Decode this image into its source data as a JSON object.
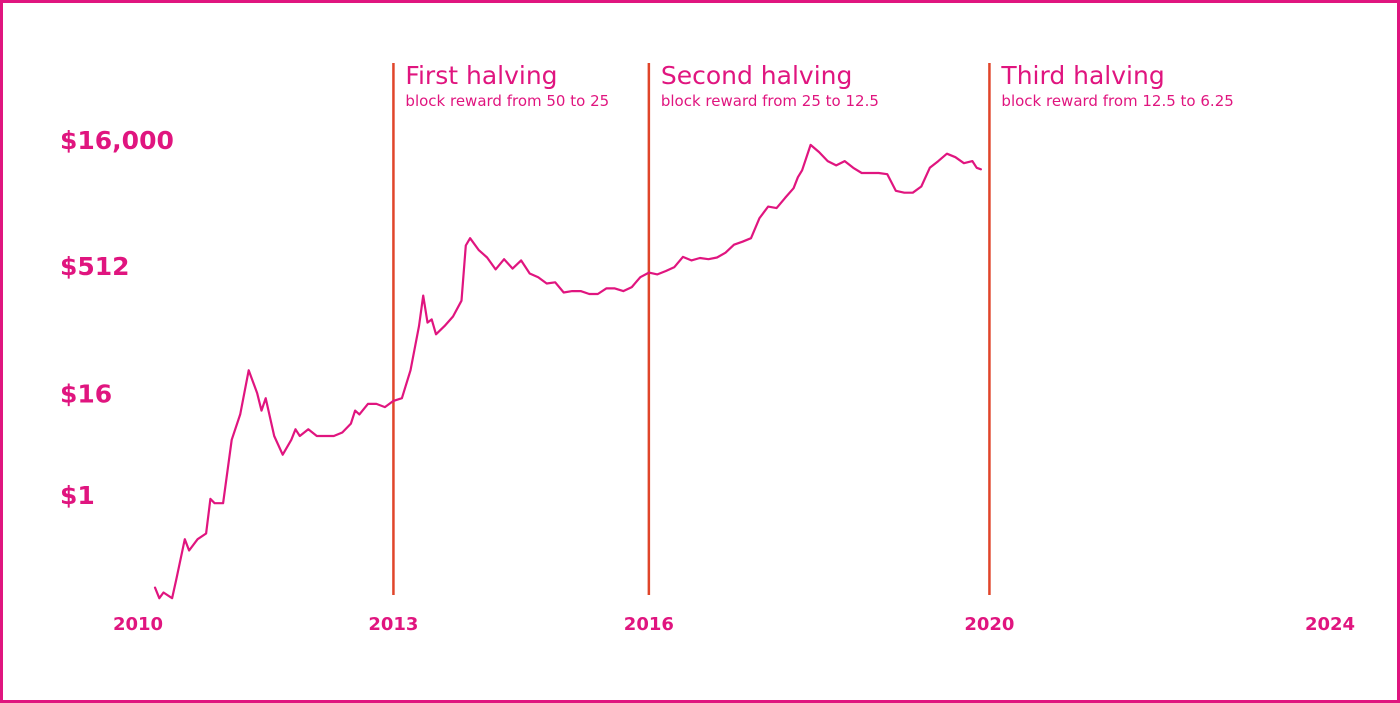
{
  "colors": {
    "accent": "#e0157f",
    "halving_line": "#e0452a",
    "border": "#e0157f",
    "background": "#ffffff"
  },
  "chart_data": {
    "type": "line",
    "title": "",
    "xlabel": "",
    "ylabel": "",
    "y_scale": "log",
    "grid": false,
    "legend": "none",
    "xlim": [
      2010,
      2024
    ],
    "ylim": [
      0.05,
      30000
    ],
    "x_ticks": [
      {
        "value": 2010,
        "label": "2010"
      },
      {
        "value": 2013,
        "label": "2013"
      },
      {
        "value": 2016,
        "label": "2016"
      },
      {
        "value": 2020,
        "label": "2020"
      },
      {
        "value": 2024,
        "label": "2024"
      }
    ],
    "y_ticks": [
      {
        "value": 1,
        "label": "$1"
      },
      {
        "value": 16,
        "label": "$16"
      },
      {
        "value": 512,
        "label": "$512"
      },
      {
        "value": 16000,
        "label": "$16,000"
      }
    ],
    "halvings": [
      {
        "x": 2013.0,
        "title": "First halving",
        "subtitle": "block reward from 50 to 25"
      },
      {
        "x": 2016.0,
        "title": "Second halving",
        "subtitle": "block reward from 25 to 12.5"
      },
      {
        "x": 2020.0,
        "title": "Third halving",
        "subtitle": "block reward from 12.5 to 6.25"
      }
    ],
    "series": [
      {
        "x": [
          2010.2,
          2010.25,
          2010.3,
          2010.4,
          2010.45,
          2010.55,
          2010.6,
          2010.7,
          2010.8,
          2010.85,
          2010.9,
          2011.0,
          2011.1,
          2011.2,
          2011.3,
          2011.35,
          2011.4,
          2011.45,
          2011.5,
          2011.6,
          2011.7,
          2011.8,
          2011.85,
          2011.9,
          2012.0,
          2012.1,
          2012.2,
          2012.3,
          2012.4,
          2012.5,
          2012.55,
          2012.6,
          2012.7,
          2012.8,
          2012.9,
          2013.0,
          2013.1,
          2013.2,
          2013.3,
          2013.35,
          2013.4,
          2013.45,
          2013.5,
          2013.6,
          2013.7,
          2013.8,
          2013.85,
          2013.9,
          2014.0,
          2014.1,
          2014.2,
          2014.3,
          2014.4,
          2014.5,
          2014.6,
          2014.7,
          2014.8,
          2014.9,
          2015.0,
          2015.1,
          2015.2,
          2015.3,
          2015.4,
          2015.5,
          2015.6,
          2015.7,
          2015.8,
          2015.9,
          2016.0,
          2016.1,
          2016.2,
          2016.3,
          2016.4,
          2016.5,
          2016.6,
          2016.7,
          2016.8,
          2016.9,
          2017.0,
          2017.1,
          2017.2,
          2017.3,
          2017.4,
          2017.5,
          2017.6,
          2017.7,
          2017.75,
          2017.8,
          2017.9,
          2018.0,
          2018.1,
          2018.2,
          2018.3,
          2018.4,
          2018.5,
          2018.6,
          2018.7,
          2018.8,
          2018.9,
          2019.0,
          2019.1,
          2019.2,
          2019.3,
          2019.4,
          2019.5,
          2019.6,
          2019.7,
          2019.8,
          2019.85,
          2019.9
        ],
        "values": [
          0.08,
          0.06,
          0.07,
          0.06,
          0.1,
          0.3,
          0.22,
          0.3,
          0.35,
          0.9,
          0.8,
          0.8,
          4.5,
          9.0,
          30.0,
          22.0,
          16.0,
          10.0,
          14.0,
          5.0,
          3.0,
          4.5,
          6.0,
          5.0,
          6.0,
          5.0,
          5.0,
          5.0,
          5.5,
          7.0,
          10.0,
          9.0,
          12.0,
          12.0,
          11.0,
          13.0,
          14.0,
          30.0,
          100.0,
          230.0,
          110.0,
          120.0,
          80.0,
          100.0,
          130.0,
          200.0,
          900.0,
          1100.0,
          800.0,
          650.0,
          470.0,
          620.0,
          480.0,
          600.0,
          420.0,
          380.0,
          320.0,
          330.0,
          250.0,
          260.0,
          260.0,
          240.0,
          240.0,
          280.0,
          280.0,
          260.0,
          290.0,
          380.0,
          430.0,
          410.0,
          450.0,
          500.0,
          660.0,
          600.0,
          640.0,
          620.0,
          650.0,
          740.0,
          920.0,
          1000.0,
          1100.0,
          1900.0,
          2600.0,
          2500.0,
          3300.0,
          4300.0,
          5800.0,
          7000.0,
          14000.0,
          11500.0,
          9000.0,
          8000.0,
          9000.0,
          7500.0,
          6500.0,
          6500.0,
          6500.0,
          6300.0,
          4000.0,
          3800.0,
          3800.0,
          4500.0,
          7500.0,
          9000.0,
          11000.0,
          10000.0,
          8500.0,
          9000.0,
          7500.0,
          7200.0
        ]
      }
    ]
  }
}
